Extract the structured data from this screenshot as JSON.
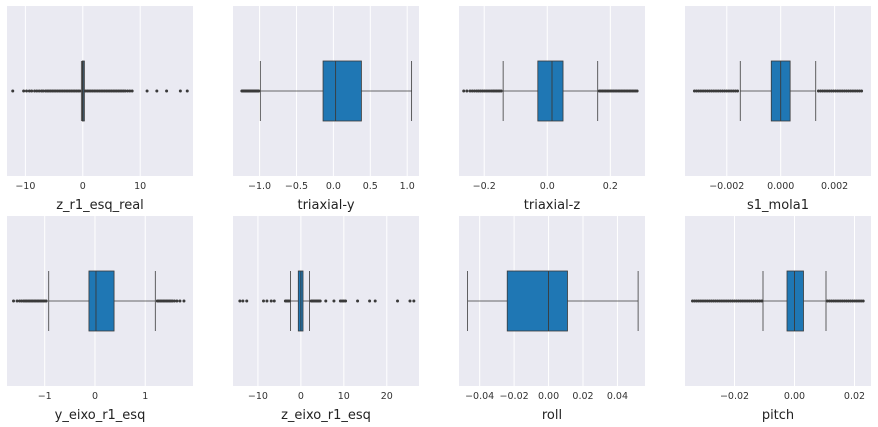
{
  "figure": {
    "background": "#ffffff",
    "panel_background": "#eaeaf2",
    "grid_color": "#ffffff",
    "box_color": "#1f77b4",
    "line_color": "#3a3a3a"
  },
  "chart_data": [
    {
      "type": "box",
      "xlabel": "z_r1_esq_real",
      "xlim": [
        -13.2,
        19.2
      ],
      "ticks": [
        -10,
        0,
        10
      ],
      "tick_labels": [
        "−10",
        "0",
        "10"
      ],
      "box": {
        "q1": -0.08,
        "median": 0.0,
        "q3": 0.08,
        "whisker_low": -0.25,
        "whisker_high": 0.25
      },
      "box_color": "#3d5f74",
      "outliers": [
        -12.2,
        -10.3,
        -9.8,
        -9.3,
        -8.9,
        -8.4,
        -8.0,
        -7.6,
        -7.2,
        -6.9,
        -6.5,
        -6.2,
        -5.9,
        -5.6,
        -5.3,
        -5.0,
        -4.7,
        -4.4,
        -4.1,
        -3.8,
        -3.5,
        -3.2,
        -2.9,
        -2.6,
        -2.3,
        -2.0,
        -1.7,
        -1.4,
        -1.1,
        -0.8,
        -0.5,
        0.5,
        0.8,
        1.1,
        1.4,
        1.7,
        2.0,
        2.3,
        2.6,
        2.9,
        3.2,
        3.5,
        3.8,
        4.1,
        4.4,
        4.7,
        5.0,
        5.3,
        5.6,
        5.9,
        6.2,
        6.5,
        6.8,
        7.1,
        7.4,
        7.8,
        8.2,
        8.6,
        11.2,
        12.9,
        14.6,
        17.0,
        18.2
      ]
    },
    {
      "type": "box",
      "xlabel": "triaxial-y",
      "xlim": [
        -1.36,
        1.16
      ],
      "ticks": [
        -1.0,
        -0.5,
        0.0,
        0.5,
        1.0
      ],
      "tick_labels": [
        "−1.0",
        "−0.5",
        "0.0",
        "0.5",
        "1.0"
      ],
      "box": {
        "q1": -0.14,
        "median": 0.03,
        "q3": 0.38,
        "whisker_low": -0.99,
        "whisker_high": 1.06
      },
      "outliers": [
        -1.24,
        -1.23,
        -1.22,
        -1.21,
        -1.2,
        -1.19,
        -1.18,
        -1.17,
        -1.16,
        -1.15,
        -1.14,
        -1.13,
        -1.12,
        -1.11,
        -1.1,
        -1.09,
        -1.08,
        -1.07,
        -1.06,
        -1.05,
        -1.04,
        -1.03,
        -1.02,
        -1.01
      ]
    },
    {
      "type": "box",
      "xlabel": "triaxial-z",
      "xlim": [
        -0.28,
        0.31
      ],
      "ticks": [
        -0.2,
        0.0,
        0.2
      ],
      "tick_labels": [
        "−0.2",
        "0.0",
        "0.2"
      ],
      "box": {
        "q1": -0.03,
        "median": 0.015,
        "q3": 0.05,
        "whisker_low": -0.14,
        "whisker_high": 0.16
      },
      "outliers": [
        -0.265,
        -0.255,
        -0.245,
        -0.238,
        -0.231,
        -0.224,
        -0.218,
        -0.212,
        -0.206,
        -0.2,
        -0.194,
        -0.188,
        -0.182,
        -0.176,
        -0.171,
        -0.166,
        -0.161,
        -0.156,
        -0.151,
        -0.146,
        0.165,
        0.17,
        0.175,
        0.18,
        0.185,
        0.19,
        0.195,
        0.2,
        0.205,
        0.21,
        0.215,
        0.22,
        0.225,
        0.23,
        0.235,
        0.24,
        0.245,
        0.25,
        0.255,
        0.26,
        0.265,
        0.27,
        0.275,
        0.28,
        0.285
      ]
    },
    {
      "type": "box",
      "xlabel": "s1_mola1",
      "xlim": [
        -0.00355,
        0.00335
      ],
      "ticks": [
        -0.002,
        0.0,
        0.002
      ],
      "tick_labels": [
        "−0.002",
        "0.000",
        "0.002"
      ],
      "box": {
        "q1": -0.00035,
        "median": 0.0,
        "q3": 0.00035,
        "whisker_low": -0.0015,
        "whisker_high": 0.0013
      },
      "outliers": [
        -0.0032,
        -0.00312,
        -0.00304,
        -0.00296,
        -0.00288,
        -0.0028,
        -0.00272,
        -0.00264,
        -0.00256,
        -0.00248,
        -0.0024,
        -0.00232,
        -0.00224,
        -0.00216,
        -0.00208,
        -0.002,
        -0.00192,
        -0.00184,
        -0.00176,
        -0.00168,
        -0.0016,
        0.0014,
        0.00148,
        0.00156,
        0.00164,
        0.00172,
        0.0018,
        0.00188,
        0.00196,
        0.00204,
        0.00212,
        0.0022,
        0.00228,
        0.00236,
        0.00244,
        0.00252,
        0.0026,
        0.00268,
        0.00276,
        0.00284,
        0.00292,
        0.003
      ]
    },
    {
      "type": "box",
      "xlabel": "y_eixo_r1_esq",
      "xlim": [
        -1.75,
        1.95
      ],
      "ticks": [
        -1,
        0,
        1
      ],
      "tick_labels": [
        "−1",
        "0",
        "1"
      ],
      "box": {
        "q1": -0.12,
        "median": 0.02,
        "q3": 0.38,
        "whisker_low": -0.92,
        "whisker_high": 1.2
      },
      "outliers": [
        -1.62,
        -1.55,
        -1.5,
        -1.46,
        -1.42,
        -1.39,
        -1.36,
        -1.33,
        -1.3,
        -1.27,
        -1.24,
        -1.21,
        -1.18,
        -1.15,
        -1.12,
        -1.09,
        -1.06,
        -1.03,
        -1.0,
        -0.97,
        1.24,
        1.27,
        1.3,
        1.33,
        1.36,
        1.39,
        1.42,
        1.45,
        1.48,
        1.51,
        1.54,
        1.58,
        1.63,
        1.69,
        1.77
      ]
    },
    {
      "type": "box",
      "xlabel": "z_eixo_r1_esq",
      "xlim": [
        -15.8,
        27.5
      ],
      "ticks": [
        -10,
        0,
        10,
        20
      ],
      "tick_labels": [
        "−10",
        "0",
        "10",
        "20"
      ],
      "box": {
        "q1": -0.6,
        "median": 0.0,
        "q3": 0.5,
        "whisker_low": -2.4,
        "whisker_high": 2.0
      },
      "outliers": [
        -14.2,
        -13.5,
        -12.6,
        -8.7,
        -7.9,
        -6.9,
        -6.2,
        -3.6,
        -3.3,
        -3.0,
        -2.7,
        2.4,
        2.7,
        3.0,
        3.3,
        3.6,
        3.9,
        4.2,
        4.5,
        5.8,
        7.7,
        9.2,
        9.6,
        10.0,
        10.4,
        13.2,
        16.0,
        17.3,
        22.5,
        25.4,
        26.3
      ]
    },
    {
      "type": "box",
      "xlabel": "roll",
      "xlim": [
        -0.052,
        0.056
      ],
      "ticks": [
        -0.04,
        -0.02,
        0.0,
        0.02,
        0.04
      ],
      "tick_labels": [
        "−0.04",
        "−0.02",
        "0.00",
        "0.02",
        "0.04"
      ],
      "box": {
        "q1": -0.024,
        "median": 0.0,
        "q3": 0.011,
        "whisker_low": -0.047,
        "whisker_high": 0.052
      },
      "outliers": []
    },
    {
      "type": "box",
      "xlabel": "pitch",
      "xlim": [
        -0.0365,
        0.0255
      ],
      "ticks": [
        -0.02,
        0.0,
        0.02
      ],
      "tick_labels": [
        "−0.02",
        "0.00",
        "0.02"
      ],
      "box": {
        "q1": -0.0025,
        "median": 0.0,
        "q3": 0.003,
        "whisker_low": -0.0105,
        "whisker_high": 0.0105
      },
      "outliers": [
        -0.034,
        -0.0333,
        -0.0326,
        -0.0319,
        -0.0312,
        -0.0305,
        -0.0298,
        -0.0291,
        -0.0284,
        -0.0277,
        -0.027,
        -0.0263,
        -0.0256,
        -0.0249,
        -0.0242,
        -0.0235,
        -0.0228,
        -0.0221,
        -0.0214,
        -0.0207,
        -0.02,
        -0.0193,
        -0.0186,
        -0.0179,
        -0.0172,
        -0.0165,
        -0.0158,
        -0.0151,
        -0.0144,
        -0.0137,
        -0.013,
        -0.0123,
        -0.0116,
        -0.0109,
        0.011,
        0.0117,
        0.0124,
        0.0131,
        0.0138,
        0.0145,
        0.0152,
        0.0159,
        0.0166,
        0.0173,
        0.018,
        0.0187,
        0.0194,
        0.0201,
        0.0208,
        0.0215,
        0.0222,
        0.0229
      ]
    }
  ]
}
